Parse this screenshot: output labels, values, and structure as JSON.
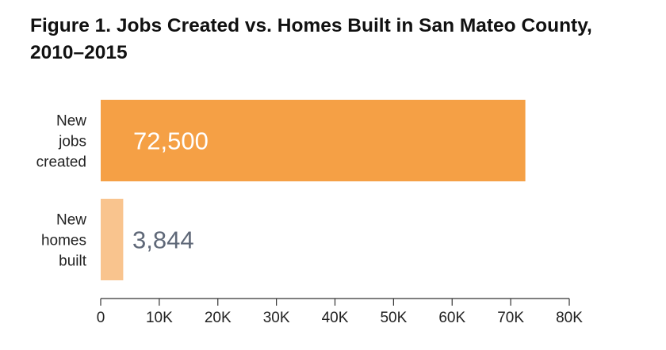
{
  "title": {
    "line1": "Figure 1. Jobs Created vs. Homes Built in San Mateo County,",
    "line2": "2010–2015"
  },
  "colors": {
    "jobs_bar": "#f5a045",
    "homes_bar": "#f9c48e",
    "jobs_value_text": "#ffffff",
    "homes_value_text": "#5f6878",
    "axis": "#333333"
  },
  "chart_data": {
    "type": "bar",
    "orientation": "horizontal",
    "categories": [
      [
        "New",
        "jobs",
        "created"
      ],
      [
        "New",
        "homes",
        "built"
      ]
    ],
    "values": [
      72500,
      3844
    ],
    "value_labels": [
      "72,500",
      "3,844"
    ],
    "xlim": [
      0,
      80000
    ],
    "xticks": [
      0,
      10000,
      20000,
      30000,
      40000,
      50000,
      60000,
      70000,
      80000
    ],
    "xtick_labels": [
      "0",
      "10K",
      "20K",
      "30K",
      "40K",
      "50K",
      "60K",
      "70K",
      "80K"
    ],
    "grid": false,
    "legend": "none"
  }
}
